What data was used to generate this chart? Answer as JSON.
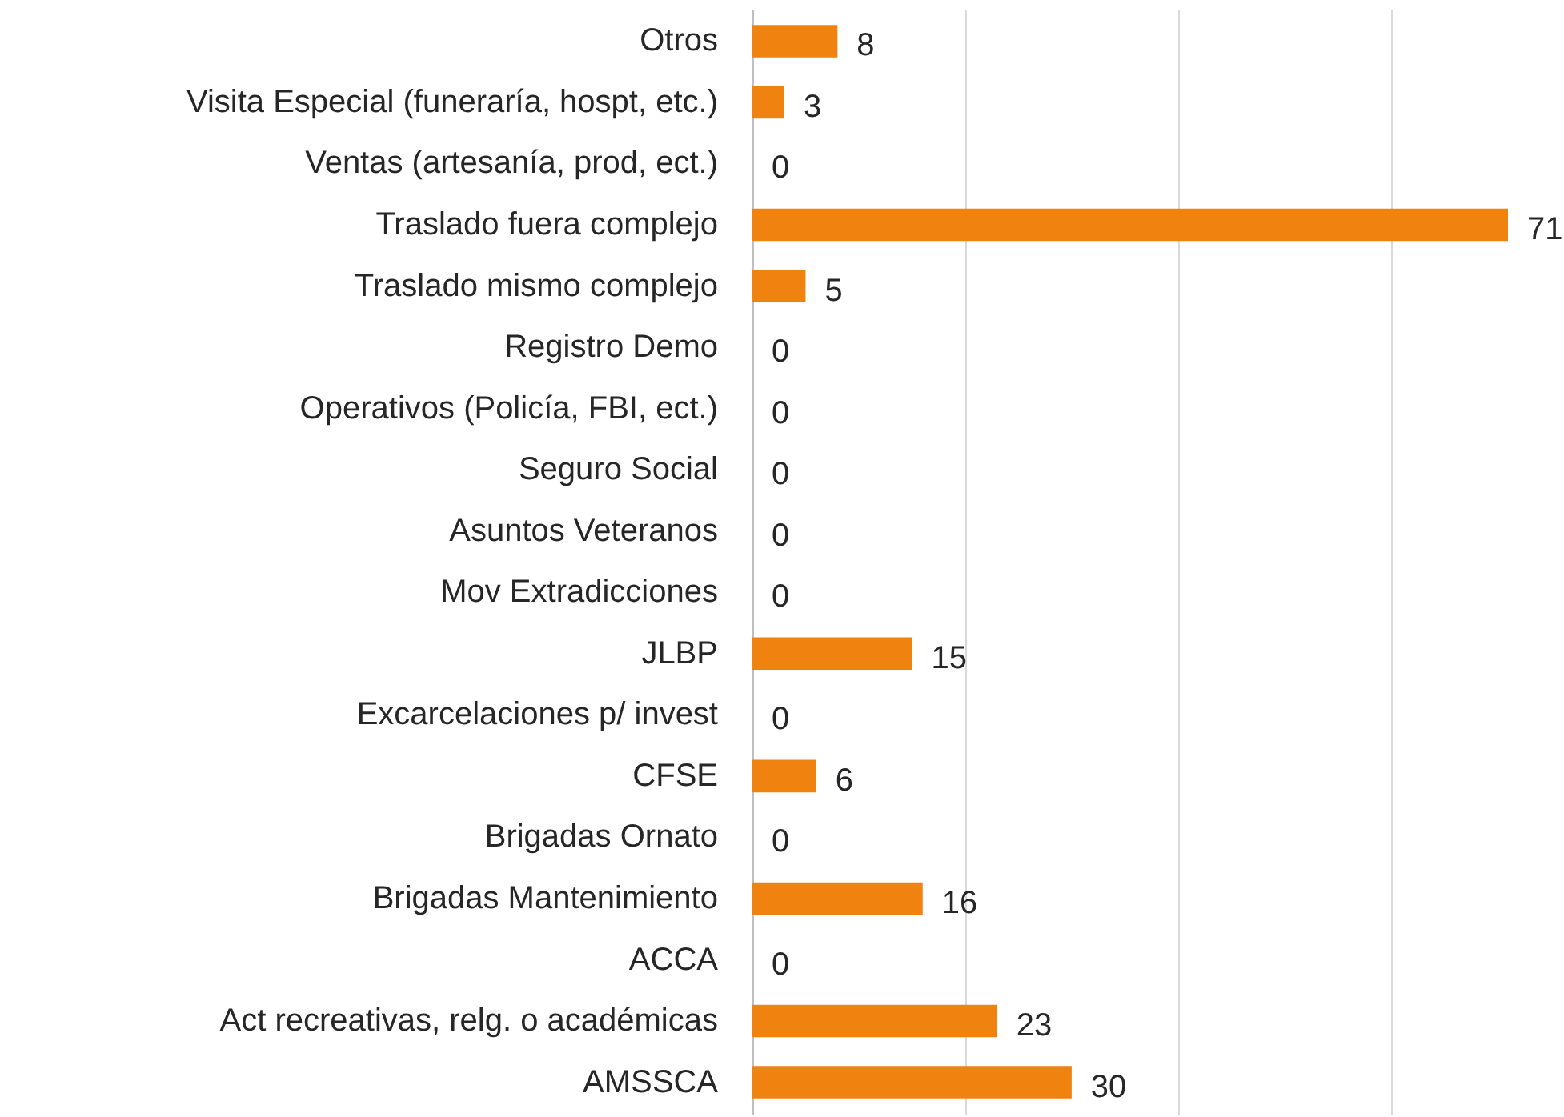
{
  "chart_data": {
    "type": "bar",
    "orientation": "horizontal",
    "categories": [
      "Otros",
      "Visita Especial (funeraría, hospt, etc.)",
      "Ventas (artesanía, prod, ect.)",
      "Traslado fuera complejo",
      "Traslado mismo complejo",
      "Registro Demo",
      "Operativos  (Policía, FBI, ect.)",
      "Seguro Social",
      "Asuntos Veteranos",
      "Mov Extradicciones",
      "JLBP",
      "Excarcelaciones p/ invest",
      "CFSE",
      "Brigadas Ornato",
      "Brigadas Mantenimiento",
      "ACCA",
      "Act recreativas, relg. o académicas",
      "AMSSCA"
    ],
    "values": [
      8,
      3,
      0,
      71,
      5,
      0,
      0,
      0,
      0,
      0,
      15,
      0,
      6,
      0,
      16,
      0,
      23,
      30
    ],
    "color": "#f0820f",
    "xticks": [
      0,
      20,
      40,
      60
    ],
    "grid": "x",
    "tick_labels": "y",
    "data_labels": true
  }
}
